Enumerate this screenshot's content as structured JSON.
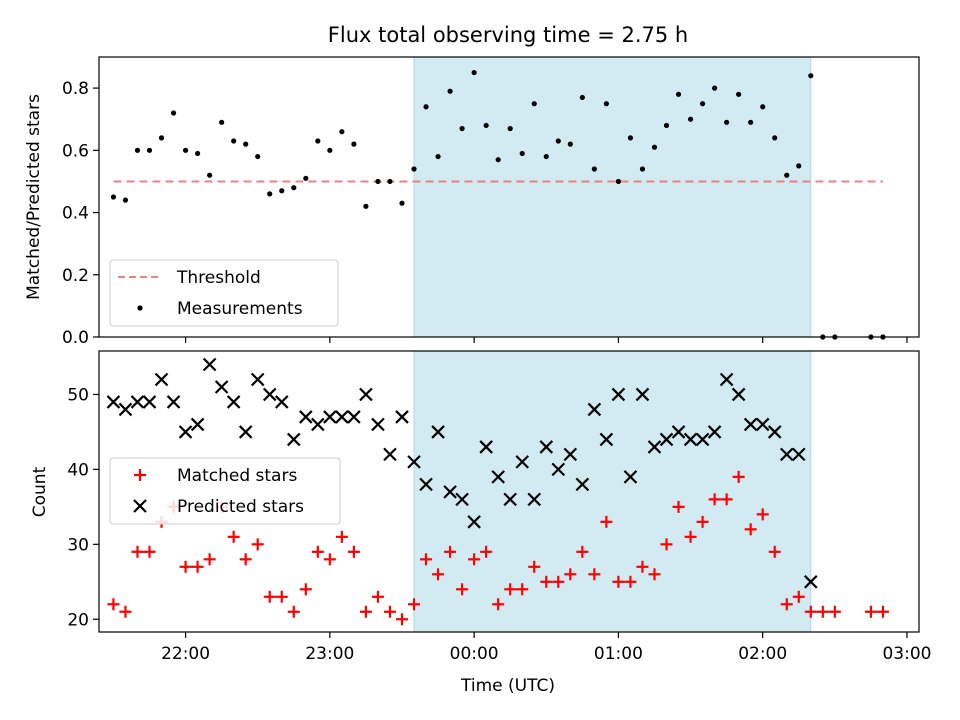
{
  "chart_data": [
    {
      "type": "scatter",
      "title": "Flux total observing time = 2.75 h",
      "xlabel": "",
      "ylabel": "Matched/Predicted stars",
      "x_type": "time",
      "xlim": [
        "21:24",
        "03:05"
      ],
      "ylim": [
        0,
        0.9
      ],
      "y_ticks": [
        0.0,
        0.2,
        0.4,
        0.6,
        0.8
      ],
      "y_tick_labels": [
        "0.0",
        "0.2",
        "0.4",
        "0.6",
        "0.8"
      ],
      "shaded_interval": {
        "start": "23:35",
        "end": "02:20",
        "color": "#add8e6"
      },
      "threshold": {
        "name": "Threshold",
        "value": 0.5,
        "x_range": [
          "21:30",
          "02:50"
        ],
        "color": "#f08080"
      },
      "legend": {
        "position": "lower-left",
        "entries": [
          "Threshold",
          "Measurements"
        ]
      },
      "series": [
        {
          "name": "Measurements",
          "color": "#000000",
          "x": [
            "21:30",
            "21:35",
            "21:40",
            "21:45",
            "21:50",
            "21:55",
            "22:00",
            "22:05",
            "22:10",
            "22:15",
            "22:20",
            "22:25",
            "22:30",
            "22:35",
            "22:40",
            "22:45",
            "22:50",
            "22:55",
            "23:00",
            "23:05",
            "23:10",
            "23:15",
            "23:20",
            "23:25",
            "23:30",
            "23:35",
            "23:40",
            "23:45",
            "23:50",
            "23:55",
            "00:00",
            "00:05",
            "00:10",
            "00:15",
            "00:20",
            "00:25",
            "00:30",
            "00:35",
            "00:40",
            "00:45",
            "00:50",
            "00:55",
            "01:00",
            "01:05",
            "01:10",
            "01:15",
            "01:20",
            "01:25",
            "01:30",
            "01:35",
            "01:40",
            "01:45",
            "01:50",
            "01:55",
            "02:00",
            "02:05",
            "02:10",
            "02:15",
            "02:20",
            "02:25",
            "02:30",
            "02:45",
            "02:50"
          ],
          "y": [
            0.45,
            0.44,
            0.6,
            0.6,
            0.64,
            0.72,
            0.6,
            0.59,
            0.52,
            0.69,
            0.63,
            0.62,
            0.58,
            0.46,
            0.47,
            0.48,
            0.51,
            0.63,
            0.6,
            0.66,
            0.62,
            0.42,
            0.5,
            0.5,
            0.43,
            0.54,
            0.74,
            0.58,
            0.79,
            0.67,
            0.85,
            0.68,
            0.57,
            0.67,
            0.59,
            0.75,
            0.58,
            0.63,
            0.62,
            0.77,
            0.54,
            0.75,
            0.5,
            0.64,
            0.54,
            0.61,
            0.68,
            0.78,
            0.7,
            0.75,
            0.8,
            0.69,
            0.78,
            0.69,
            0.74,
            0.64,
            0.52,
            0.55,
            0.84,
            0.0,
            0.0,
            0.0,
            0.0
          ]
        }
      ]
    },
    {
      "type": "scatter",
      "title": "",
      "xlabel": "Time (UTC)",
      "ylabel": "Count",
      "x_type": "time",
      "xlim": [
        "21:24",
        "03:05"
      ],
      "ylim": [
        18.3,
        55.8
      ],
      "y_ticks": [
        20,
        30,
        40,
        50
      ],
      "y_tick_labels": [
        "20",
        "30",
        "40",
        "50"
      ],
      "x_ticks": [
        "22:00",
        "23:00",
        "00:00",
        "01:00",
        "02:00",
        "03:00"
      ],
      "x_tick_labels": [
        "22:00",
        "23:00",
        "00:00",
        "01:00",
        "02:00",
        "03:00"
      ],
      "shaded_interval": {
        "start": "23:35",
        "end": "02:20",
        "color": "#add8e6"
      },
      "legend": {
        "position": "center-left",
        "entries": [
          "Matched stars",
          "Predicted stars"
        ]
      },
      "series": [
        {
          "name": "Matched stars",
          "color": "#ff0000",
          "marker": "+",
          "x": [
            "21:30",
            "21:35",
            "21:40",
            "21:45",
            "21:50",
            "21:55",
            "22:00",
            "22:05",
            "22:10",
            "22:15",
            "22:20",
            "22:25",
            "22:30",
            "22:35",
            "22:40",
            "22:45",
            "22:50",
            "22:55",
            "23:00",
            "23:05",
            "23:10",
            "23:15",
            "23:20",
            "23:25",
            "23:30",
            "23:35",
            "23:40",
            "23:45",
            "23:50",
            "23:55",
            "00:00",
            "00:05",
            "00:10",
            "00:15",
            "00:20",
            "00:25",
            "00:30",
            "00:35",
            "00:40",
            "00:45",
            "00:50",
            "00:55",
            "01:00",
            "01:05",
            "01:10",
            "01:15",
            "01:20",
            "01:25",
            "01:30",
            "01:35",
            "01:40",
            "01:45",
            "01:50",
            "01:55",
            "02:00",
            "02:05",
            "02:10",
            "02:15",
            "02:20",
            "02:25",
            "02:30",
            "02:45",
            "02:50"
          ],
          "y": [
            22,
            21,
            29,
            29,
            33,
            35,
            27,
            27,
            28,
            35,
            31,
            28,
            30,
            23,
            23,
            21,
            24,
            29,
            28,
            31,
            29,
            21,
            23,
            21,
            20,
            22,
            28,
            26,
            29,
            24,
            28,
            29,
            22,
            24,
            24,
            27,
            25,
            25,
            26,
            29,
            26,
            33,
            25,
            25,
            27,
            26,
            30,
            35,
            31,
            33,
            36,
            36,
            39,
            32,
            34,
            29,
            22,
            23,
            21,
            21,
            21,
            21,
            21
          ]
        },
        {
          "name": "Predicted stars",
          "color": "#000000",
          "marker": "x",
          "x": [
            "21:30",
            "21:35",
            "21:40",
            "21:45",
            "21:50",
            "21:55",
            "22:00",
            "22:05",
            "22:10",
            "22:15",
            "22:20",
            "22:25",
            "22:30",
            "22:35",
            "22:40",
            "22:45",
            "22:50",
            "22:55",
            "23:00",
            "23:05",
            "23:10",
            "23:15",
            "23:20",
            "23:25",
            "23:30",
            "23:35",
            "23:40",
            "23:45",
            "23:50",
            "23:55",
            "00:00",
            "00:05",
            "00:10",
            "00:15",
            "00:20",
            "00:25",
            "00:30",
            "00:35",
            "00:40",
            "00:45",
            "00:50",
            "00:55",
            "01:00",
            "01:05",
            "01:10",
            "01:15",
            "01:20",
            "01:25",
            "01:30",
            "01:35",
            "01:40",
            "01:45",
            "01:50",
            "01:55",
            "02:00",
            "02:05",
            "02:10",
            "02:15",
            "02:20"
          ],
          "y": [
            49,
            48,
            49,
            49,
            52,
            49,
            45,
            46,
            54,
            51,
            49,
            45,
            52,
            50,
            49,
            44,
            47,
            46,
            47,
            47,
            47,
            50,
            46,
            42,
            47,
            41,
            38,
            45,
            37,
            36,
            33,
            43,
            39,
            36,
            41,
            36,
            43,
            40,
            42,
            38,
            48,
            44,
            50,
            39,
            50,
            43,
            44,
            45,
            44,
            44,
            45,
            52,
            50,
            46,
            46,
            45,
            42,
            42,
            25
          ]
        }
      ]
    }
  ]
}
